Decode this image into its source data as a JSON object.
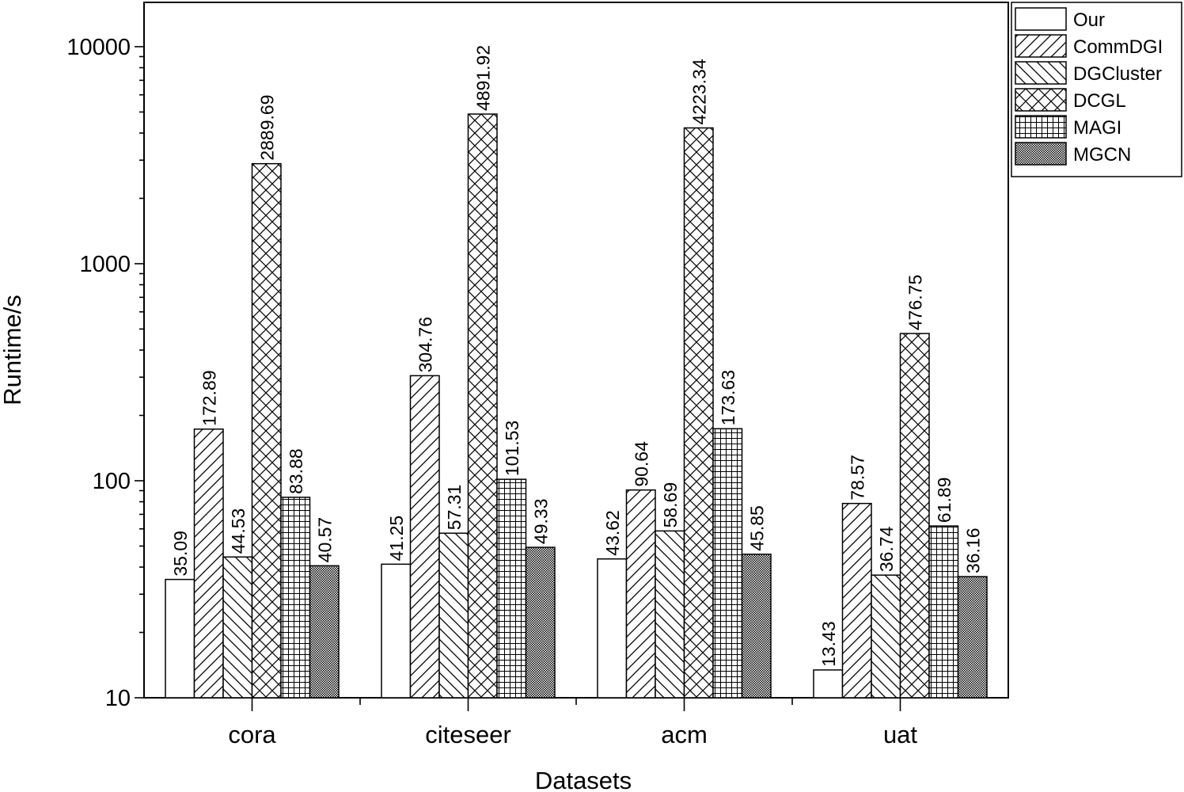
{
  "chart_data": {
    "type": "bar",
    "title": "",
    "xlabel": "Datasets",
    "ylabel": "Runtime/s",
    "yscale": "log",
    "ylim": [
      10,
      16000
    ],
    "y_ticks": [
      10,
      100,
      1000,
      10000
    ],
    "y_tick_labels": [
      "10",
      "100",
      "1000",
      "10000"
    ],
    "grid": false,
    "legend_position": "top-right",
    "categories": [
      "cora",
      "citeseer",
      "acm",
      "uat"
    ],
    "series": [
      {
        "name": "Our",
        "pattern": "none",
        "values": [
          35.09,
          41.25,
          43.62,
          13.43
        ],
        "labels": [
          "35.09",
          "41.25",
          "43.62",
          "13.43"
        ]
      },
      {
        "name": "CommDGI",
        "pattern": "forward-diagonal",
        "values": [
          172.89,
          304.76,
          90.64,
          78.57
        ],
        "labels": [
          "172.89",
          "304.76",
          "90.64",
          "78.57"
        ]
      },
      {
        "name": "DGCluster",
        "pattern": "backward-diagonal",
        "values": [
          44.53,
          57.31,
          58.69,
          36.74
        ],
        "labels": [
          "44.53",
          "57.31",
          "58.69",
          "36.74"
        ]
      },
      {
        "name": "DCGL",
        "pattern": "crosshatch-diagonal",
        "values": [
          2889.69,
          4891.92,
          4223.34,
          476.75
        ],
        "labels": [
          "2889.69",
          "4891.92",
          "4223.34",
          "476.75"
        ]
      },
      {
        "name": "MAGI",
        "pattern": "grid",
        "values": [
          83.88,
          101.53,
          173.63,
          61.89
        ],
        "labels": [
          "83.88",
          "101.53",
          "173.63",
          "61.89"
        ]
      },
      {
        "name": "MGCN",
        "pattern": "dots",
        "values": [
          40.57,
          49.33,
          45.85,
          36.16
        ],
        "labels": [
          "40.57",
          "49.33",
          "45.85",
          "36.16"
        ]
      }
    ]
  }
}
